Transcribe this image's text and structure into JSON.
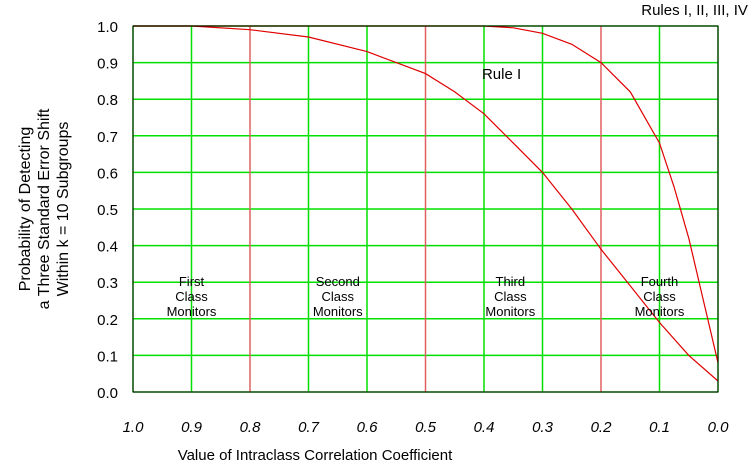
{
  "chart_data": {
    "type": "line",
    "title": "",
    "xlabel": "Value of Intraclass Correlation Coefficient",
    "ylabel_lines": [
      "Probability of Detecting",
      "a Three Standard Error Shift",
      "Within k = 10 Subgroups"
    ],
    "xlim": [
      1.0,
      0.0
    ],
    "ylim": [
      0.0,
      1.0
    ],
    "x_ticks": [
      "1.0",
      "0.9",
      "0.8",
      "0.7",
      "0.6",
      "0.5",
      "0.4",
      "0.3",
      "0.2",
      "0.1",
      "0.0"
    ],
    "y_ticks": [
      "0.0",
      "0.1",
      "0.2",
      "0.3",
      "0.4",
      "0.5",
      "0.6",
      "0.7",
      "0.8",
      "0.9",
      "1.0"
    ],
    "grid": true,
    "colors": {
      "grid_minor": "#00e000",
      "grid_major": "#e06060",
      "curve": "#e00000",
      "frame": "#000000"
    },
    "series": [
      {
        "name": "Rule I",
        "x": [
          1.0,
          0.9,
          0.8,
          0.7,
          0.6,
          0.5,
          0.45,
          0.4,
          0.35,
          0.3,
          0.25,
          0.2,
          0.15,
          0.1,
          0.05,
          0.0
        ],
        "y": [
          1.0,
          1.0,
          0.99,
          0.97,
          0.93,
          0.87,
          0.82,
          0.76,
          0.68,
          0.6,
          0.5,
          0.39,
          0.29,
          0.19,
          0.1,
          0.03
        ]
      },
      {
        "name": "Rules I, II, III, IV",
        "x": [
          1.0,
          0.8,
          0.6,
          0.4,
          0.35,
          0.3,
          0.25,
          0.2,
          0.15,
          0.1,
          0.075,
          0.05,
          0.025,
          0.0
        ],
        "y": [
          1.0,
          1.0,
          1.0,
          1.0,
          0.995,
          0.98,
          0.95,
          0.9,
          0.82,
          0.68,
          0.56,
          0.42,
          0.25,
          0.08
        ]
      }
    ],
    "annotations": [
      {
        "name": "label-rule-i",
        "lines": [
          "Rule I"
        ],
        "x": 0.37,
        "y": 0.855
      },
      {
        "name": "label-rules-all",
        "lines": [
          "Rules I, II, III, IV"
        ],
        "x": 0.04,
        "y": 1.03
      },
      {
        "name": "label-first-class",
        "lines": [
          "First",
          "Class",
          "Monitors"
        ],
        "x": 0.9,
        "y": 0.29
      },
      {
        "name": "label-second-class",
        "lines": [
          "Second",
          "Class",
          "Monitors"
        ],
        "x": 0.65,
        "y": 0.29
      },
      {
        "name": "label-third-class",
        "lines": [
          "Third",
          "Class",
          "Monitors"
        ],
        "x": 0.355,
        "y": 0.29
      },
      {
        "name": "label-fourth-class",
        "lines": [
          "Fourth",
          "Class",
          "Monitors"
        ],
        "x": 0.1,
        "y": 0.29
      }
    ]
  }
}
